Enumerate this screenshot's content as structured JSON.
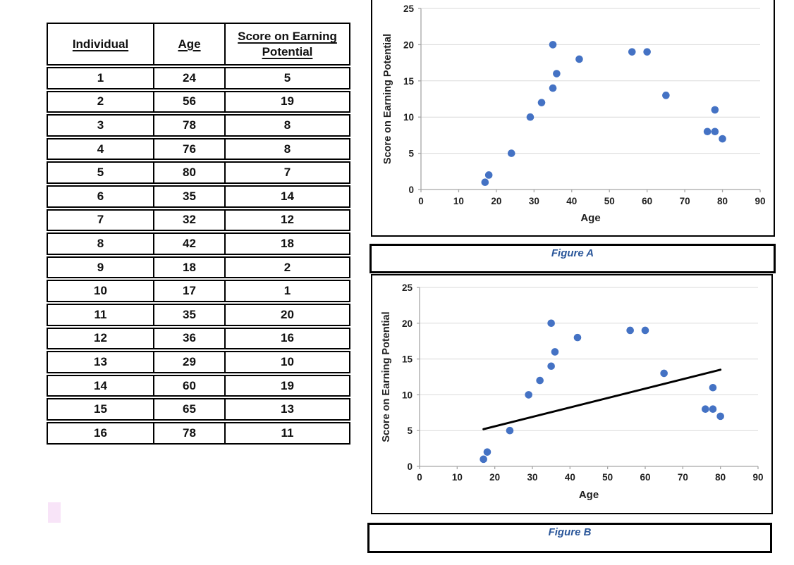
{
  "table": {
    "headers": [
      "Individual",
      "Age",
      "Score on Earning Potential"
    ],
    "rows": [
      [
        "1",
        "24",
        "5"
      ],
      [
        "2",
        "56",
        "19"
      ],
      [
        "3",
        "78",
        "8"
      ],
      [
        "4",
        "76",
        "8"
      ],
      [
        "5",
        "80",
        "7"
      ],
      [
        "6",
        "35",
        "14"
      ],
      [
        "7",
        "32",
        "12"
      ],
      [
        "8",
        "42",
        "18"
      ],
      [
        "9",
        "18",
        "2"
      ],
      [
        "10",
        "17",
        "1"
      ],
      [
        "11",
        "35",
        "20"
      ],
      [
        "12",
        "36",
        "16"
      ],
      [
        "13",
        "29",
        "10"
      ],
      [
        "14",
        "60",
        "19"
      ],
      [
        "15",
        "65",
        "13"
      ],
      [
        "16",
        "78",
        "11"
      ]
    ]
  },
  "figures": {
    "a": {
      "caption": "Figure A",
      "caption_color": "#2a5699"
    },
    "b": {
      "caption": "Figure B",
      "caption_color": "#2a5699"
    }
  },
  "decorations": {
    "pink_swatch_color": "#f8e4f8"
  },
  "chart_colors": {
    "point": "#4472c4",
    "gridline": "#d9d9d9",
    "axis": "#a6a6a6",
    "trendline": "#000000"
  },
  "chart_data": [
    {
      "id": "figure-a",
      "type": "scatter",
      "title": "",
      "xlabel": "Age",
      "ylabel": "Score on Earning Potential",
      "xlim": [
        0,
        90
      ],
      "ylim": [
        0,
        25
      ],
      "xticks": [
        0,
        10,
        20,
        30,
        40,
        50,
        60,
        70,
        80,
        90
      ],
      "yticks": [
        0,
        5,
        10,
        15,
        20,
        25
      ],
      "grid": "horizontal",
      "legend": false,
      "point_color": "#4472c4",
      "points": [
        [
          24,
          5
        ],
        [
          56,
          19
        ],
        [
          78,
          8
        ],
        [
          76,
          8
        ],
        [
          80,
          7
        ],
        [
          35,
          14
        ],
        [
          32,
          12
        ],
        [
          42,
          18
        ],
        [
          18,
          2
        ],
        [
          17,
          1
        ],
        [
          35,
          20
        ],
        [
          36,
          16
        ],
        [
          29,
          10
        ],
        [
          60,
          19
        ],
        [
          65,
          13
        ],
        [
          78,
          11
        ]
      ]
    },
    {
      "id": "figure-b",
      "type": "scatter",
      "title": "",
      "xlabel": "Age",
      "ylabel": "Score on Earning Potential",
      "xlim": [
        0,
        90
      ],
      "ylim": [
        0,
        25
      ],
      "xticks": [
        0,
        10,
        20,
        30,
        40,
        50,
        60,
        70,
        80,
        90
      ],
      "yticks": [
        0,
        5,
        10,
        15,
        20,
        25
      ],
      "grid": "horizontal",
      "legend": false,
      "point_color": "#4472c4",
      "points": [
        [
          24,
          5
        ],
        [
          56,
          19
        ],
        [
          78,
          8
        ],
        [
          76,
          8
        ],
        [
          80,
          7
        ],
        [
          35,
          14
        ],
        [
          32,
          12
        ],
        [
          42,
          18
        ],
        [
          18,
          2
        ],
        [
          17,
          1
        ],
        [
          35,
          20
        ],
        [
          36,
          16
        ],
        [
          29,
          10
        ],
        [
          60,
          19
        ],
        [
          65,
          13
        ],
        [
          78,
          11
        ]
      ],
      "trendline": {
        "x1": 17,
        "y1": 5.2,
        "x2": 80,
        "y2": 13.5,
        "color": "#000000"
      }
    }
  ]
}
